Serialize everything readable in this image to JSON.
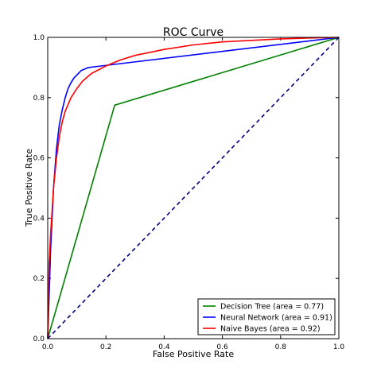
{
  "chart_data": {
    "type": "line",
    "title": "ROC Curve",
    "xlabel": "False Positive Rate",
    "ylabel": "True Positive Rate",
    "xlim": [
      0.0,
      1.0
    ],
    "ylim": [
      0.0,
      1.0
    ],
    "xticks": [
      0.0,
      0.2,
      0.4,
      0.6,
      0.8,
      1.0
    ],
    "yticks": [
      0.0,
      0.2,
      0.4,
      0.6,
      0.8,
      1.0
    ],
    "xtick_labels": [
      "0.0",
      "0.2",
      "0.4",
      "0.6",
      "0.8",
      "1.0"
    ],
    "ytick_labels": [
      "0.0",
      "0.2",
      "0.4",
      "0.6",
      "0.8",
      "1.0"
    ],
    "grid": false,
    "legend_position": "lower-right",
    "series": [
      {
        "name": "Decision Tree (area = 0.77)",
        "color": "#008000",
        "style": "solid",
        "x": [
          0.0,
          0.23,
          1.0
        ],
        "y": [
          0.0,
          0.775,
          1.0
        ]
      },
      {
        "name": "Neural Network (area = 0.91)",
        "color": "#0000ff",
        "style": "solid",
        "x": [
          0.0,
          0.01,
          0.02,
          0.03,
          0.04,
          0.05,
          0.06,
          0.07,
          0.08,
          0.09,
          0.1,
          0.115,
          0.14,
          1.0
        ],
        "y": [
          0.0,
          0.3,
          0.5,
          0.63,
          0.71,
          0.76,
          0.8,
          0.83,
          0.85,
          0.865,
          0.875,
          0.89,
          0.9,
          1.0
        ]
      },
      {
        "name": "Naive Bayes (area = 0.92)",
        "color": "#ff0000",
        "style": "solid",
        "x": [
          0.0,
          0.005,
          0.01,
          0.02,
          0.03,
          0.04,
          0.05,
          0.06,
          0.08,
          0.1,
          0.12,
          0.15,
          0.2,
          0.25,
          0.3,
          0.4,
          0.5,
          0.6,
          0.7,
          0.8,
          0.9,
          1.0
        ],
        "y": [
          0.0,
          0.25,
          0.35,
          0.5,
          0.6,
          0.67,
          0.72,
          0.755,
          0.8,
          0.83,
          0.855,
          0.88,
          0.905,
          0.925,
          0.94,
          0.96,
          0.975,
          0.985,
          0.99,
          0.995,
          0.998,
          1.0
        ]
      },
      {
        "name": "",
        "color": "#000080",
        "style": "dashed",
        "x": [
          0.0,
          1.0
        ],
        "y": [
          0.0,
          1.0
        ]
      }
    ]
  }
}
